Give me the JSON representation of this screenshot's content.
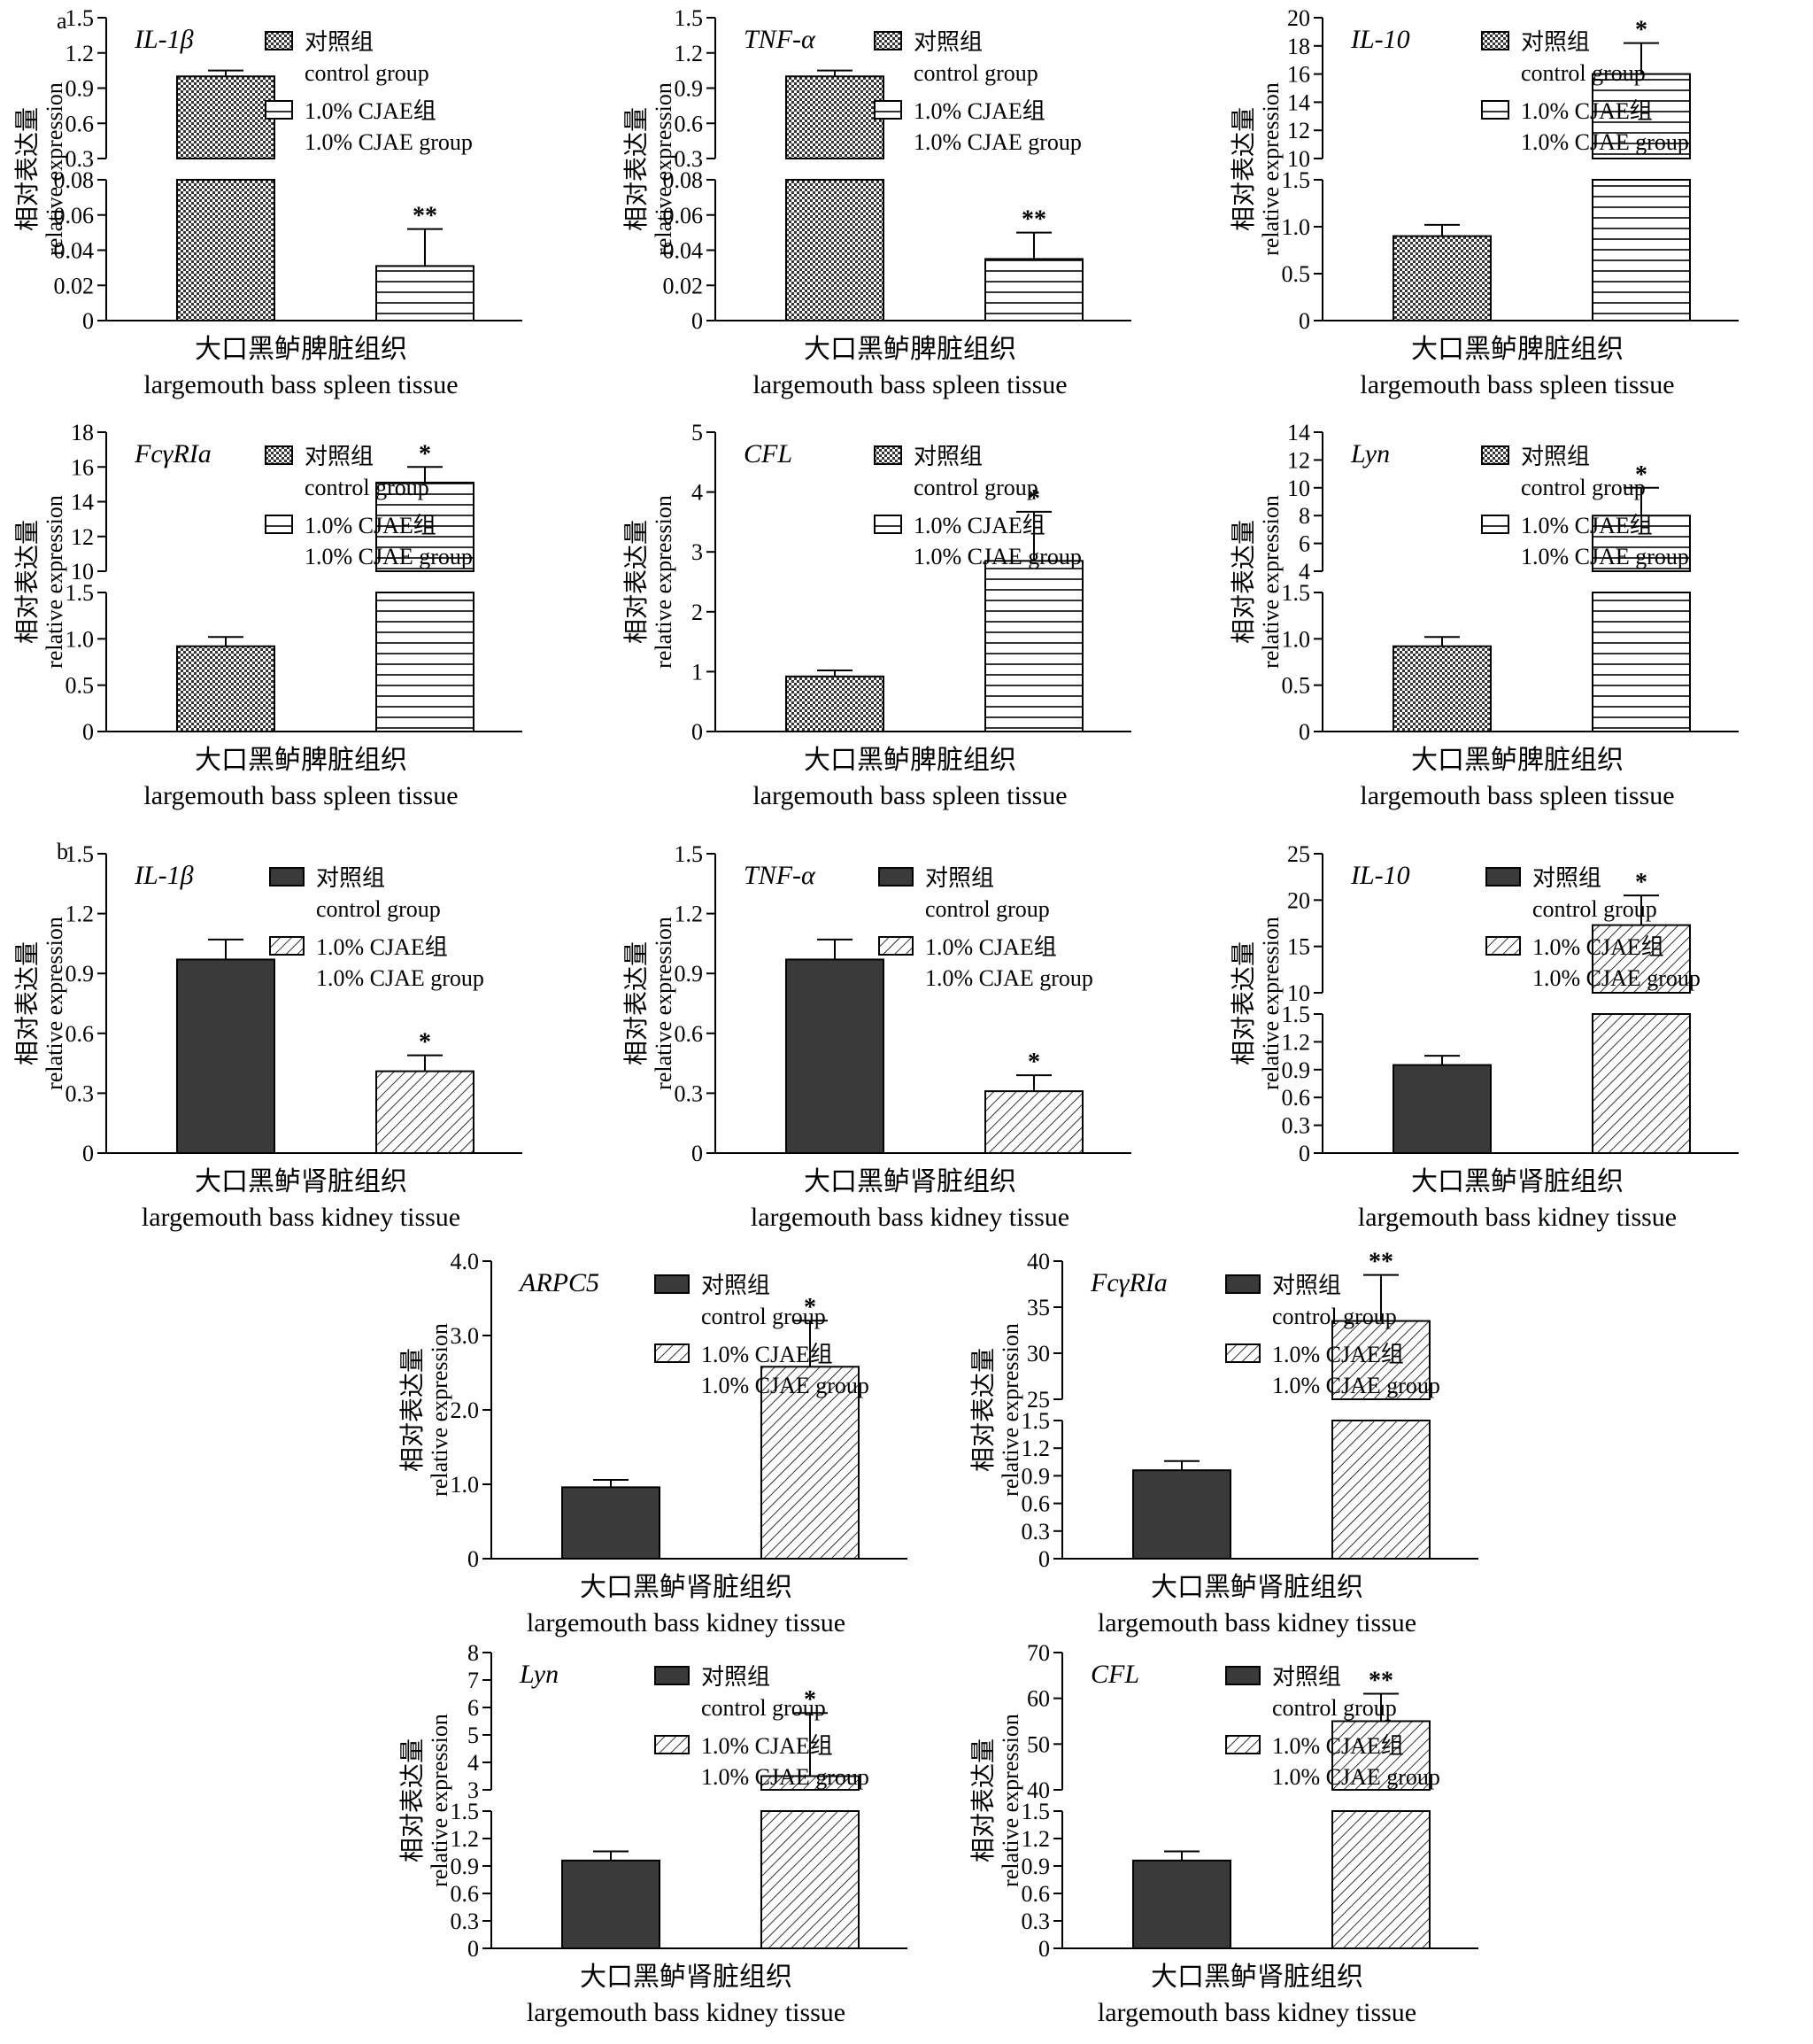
{
  "sections": [
    {
      "id": "a",
      "label": "a"
    },
    {
      "id": "b",
      "label": "b"
    }
  ],
  "patterns": {
    "spleen_control": "checker",
    "spleen_treat": "hlines",
    "kidney_control": "solid",
    "kidney_treat": "diag"
  },
  "colors": {
    "axis": "#000000",
    "kidney_control_fill": "#3a3a3a",
    "checker_dark": "#333333",
    "background": "#ffffff"
  },
  "chart_data": [
    {
      "type": "bar",
      "section": "a",
      "gene": "IL-1β",
      "ylabel_cn": "相对表达量",
      "ylabel_en": "relative expression",
      "xlabel_cn": "大口黑鲈脾脏组织",
      "xlabel_en": "largemouth bass spleen tissue",
      "legend": [
        {
          "cn": "对照组",
          "en": "control group"
        },
        {
          "cn": "1.0% CJAE组",
          "en": "1.0% CJAE group"
        }
      ],
      "series": [
        {
          "name": "对照组 control group",
          "value": 1.0,
          "error": 0.05
        },
        {
          "name": "1.0% CJAE组 1.0% CJAE group",
          "value": 0.031,
          "error": 0.021
        }
      ],
      "significance": [
        "",
        "**"
      ],
      "broken_axis": true,
      "lower_range": [
        0,
        0.08
      ],
      "lower_ticks": [
        "0",
        "0.02",
        "0.04",
        "0.06",
        "0.08"
      ],
      "upper_range": [
        0.3,
        1.5
      ],
      "upper_ticks": [
        "0.3",
        "0.6",
        "0.9",
        "1.2",
        "1.5"
      ],
      "upper_tick_values": [
        0.3,
        0.6,
        0.9,
        1.2,
        1.5
      ],
      "lower_tick_values": [
        0,
        0.02,
        0.04,
        0.06,
        0.08
      ]
    },
    {
      "type": "bar",
      "section": "a",
      "gene": "TNF-α",
      "ylabel_cn": "相对表达量",
      "ylabel_en": "relative expression",
      "xlabel_cn": "大口黑鲈脾脏组织",
      "xlabel_en": "largemouth bass spleen tissue",
      "legend": [
        {
          "cn": "对照组",
          "en": "control group"
        },
        {
          "cn": "1.0% CJAE组",
          "en": "1.0% CJAE group"
        }
      ],
      "series": [
        {
          "name": "对照组 control group",
          "value": 1.0,
          "error": 0.05
        },
        {
          "name": "1.0% CJAE组 1.0% CJAE group",
          "value": 0.035,
          "error": 0.015
        }
      ],
      "significance": [
        "",
        "**"
      ],
      "broken_axis": true,
      "lower_range": [
        0,
        0.08
      ],
      "lower_ticks": [
        "0",
        "0.02",
        "0.04",
        "0.06",
        "0.08"
      ],
      "upper_range": [
        0.3,
        1.5
      ],
      "upper_ticks": [
        "0.3",
        "0.6",
        "0.9",
        "1.2",
        "1.5"
      ],
      "upper_tick_values": [
        0.3,
        0.6,
        0.9,
        1.2,
        1.5
      ],
      "lower_tick_values": [
        0,
        0.02,
        0.04,
        0.06,
        0.08
      ]
    },
    {
      "type": "bar",
      "section": "a",
      "gene": "IL-10",
      "ylabel_cn": "相对表达量",
      "ylabel_en": "relative expression",
      "xlabel_cn": "大口黑鲈脾脏组织",
      "xlabel_en": "largemouth bass spleen tissue",
      "legend": [
        {
          "cn": "对照组",
          "en": "control group"
        },
        {
          "cn": "1.0% CJAE组",
          "en": "1.0% CJAE group"
        }
      ],
      "series": [
        {
          "name": "对照组 control group",
          "value": 0.9,
          "error": 0.12
        },
        {
          "name": "1.0% CJAE组 1.0% CJAE group",
          "value": 16.0,
          "error": 2.2
        }
      ],
      "significance": [
        "",
        "*"
      ],
      "broken_axis": true,
      "lower_range": [
        0,
        1.5
      ],
      "lower_ticks": [
        "0",
        "0.5",
        "1.0",
        "1.5"
      ],
      "upper_range": [
        10,
        20
      ],
      "upper_ticks": [
        "10",
        "12",
        "14",
        "16",
        "18",
        "20"
      ],
      "upper_tick_values": [
        10,
        12,
        14,
        16,
        18,
        20
      ],
      "lower_tick_values": [
        0,
        0.5,
        1.0,
        1.5
      ]
    },
    {
      "type": "bar",
      "section": "a",
      "gene": "FcγRIa",
      "ylabel_cn": "相对表达量",
      "ylabel_en": "relative expression",
      "xlabel_cn": "大口黑鲈脾脏组织",
      "xlabel_en": "largemouth bass spleen tissue",
      "legend": [
        {
          "cn": "对照组",
          "en": "control group"
        },
        {
          "cn": "1.0% CJAE组",
          "en": "1.0% CJAE group"
        }
      ],
      "series": [
        {
          "name": "对照组 control group",
          "value": 0.92,
          "error": 0.1
        },
        {
          "name": "1.0% CJAE组 1.0% CJAE group",
          "value": 15.1,
          "error": 0.9
        }
      ],
      "significance": [
        "",
        "*"
      ],
      "broken_axis": true,
      "lower_range": [
        0,
        1.5
      ],
      "lower_ticks": [
        "0",
        "0.5",
        "1.0",
        "1.5"
      ],
      "upper_range": [
        10,
        18
      ],
      "upper_ticks": [
        "10",
        "12",
        "14",
        "16",
        "18"
      ],
      "upper_tick_values": [
        10,
        12,
        14,
        16,
        18
      ],
      "lower_tick_values": [
        0,
        0.5,
        1.0,
        1.5
      ]
    },
    {
      "type": "bar",
      "section": "a",
      "gene": "CFL",
      "ylabel_cn": "相对表达量",
      "ylabel_en": "relative expression",
      "xlabel_cn": "大口黑鲈脾脏组织",
      "xlabel_en": "largemouth bass spleen tissue",
      "legend": [
        {
          "cn": "对照组",
          "en": "control group"
        },
        {
          "cn": "1.0% CJAE组",
          "en": "1.0% CJAE group"
        }
      ],
      "series": [
        {
          "name": "对照组 control group",
          "value": 0.92,
          "error": 0.1
        },
        {
          "name": "1.0% CJAE组 1.0% CJAE group",
          "value": 2.85,
          "error": 0.82
        }
      ],
      "significance": [
        "",
        "*"
      ],
      "broken_axis": false,
      "range": [
        0,
        5
      ],
      "ticks": [
        "0",
        "1",
        "2",
        "3",
        "4",
        "5"
      ],
      "tick_values": [
        0,
        1,
        2,
        3,
        4,
        5
      ]
    },
    {
      "type": "bar",
      "section": "a",
      "gene": "Lyn",
      "ylabel_cn": "相对表达量",
      "ylabel_en": "relative expression",
      "xlabel_cn": "大口黑鲈脾脏组织",
      "xlabel_en": "largemouth bass spleen tissue",
      "legend": [
        {
          "cn": "对照组",
          "en": "control group"
        },
        {
          "cn": "1.0% CJAE组",
          "en": "1.0% CJAE group"
        }
      ],
      "series": [
        {
          "name": "对照组 control group",
          "value": 0.92,
          "error": 0.1
        },
        {
          "name": "1.0% CJAE组 1.0% CJAE group",
          "value": 8.0,
          "error": 2.0
        }
      ],
      "significance": [
        "",
        "*"
      ],
      "broken_axis": true,
      "lower_range": [
        0,
        1.5
      ],
      "lower_ticks": [
        "0",
        "0.5",
        "1.0",
        "1.5"
      ],
      "upper_range": [
        4,
        14
      ],
      "upper_ticks": [
        "4",
        "6",
        "8",
        "10",
        "12",
        "14"
      ],
      "upper_tick_values": [
        4,
        6,
        8,
        10,
        12,
        14
      ],
      "lower_tick_values": [
        0,
        0.5,
        1.0,
        1.5
      ]
    },
    {
      "type": "bar",
      "section": "b",
      "gene": "IL-1β",
      "ylabel_cn": "相对表达量",
      "ylabel_en": "relative expression",
      "xlabel_cn": "大口黑鲈肾脏组织",
      "xlabel_en": "largemouth bass kidney tissue",
      "legend": [
        {
          "cn": "对照组",
          "en": "control group"
        },
        {
          "cn": "1.0% CJAE组",
          "en": "1.0% CJAE group"
        }
      ],
      "series": [
        {
          "name": "对照组 control group",
          "value": 0.97,
          "error": 0.1
        },
        {
          "name": "1.0% CJAE组 1.0% CJAE group",
          "value": 0.41,
          "error": 0.08
        }
      ],
      "significance": [
        "",
        "*"
      ],
      "broken_axis": false,
      "range": [
        0,
        1.5
      ],
      "ticks": [
        "0",
        "0.3",
        "0.6",
        "0.9",
        "1.2",
        "1.5"
      ],
      "tick_values": [
        0,
        0.3,
        0.6,
        0.9,
        1.2,
        1.5
      ]
    },
    {
      "type": "bar",
      "section": "b",
      "gene": "TNF-α",
      "ylabel_cn": "相对表达量",
      "ylabel_en": "relative expression",
      "xlabel_cn": "大口黑鲈肾脏组织",
      "xlabel_en": "largemouth bass kidney tissue",
      "legend": [
        {
          "cn": "对照组",
          "en": "control group"
        },
        {
          "cn": "1.0% CJAE组",
          "en": "1.0% CJAE group"
        }
      ],
      "series": [
        {
          "name": "对照组 control group",
          "value": 0.97,
          "error": 0.1
        },
        {
          "name": "1.0% CJAE组 1.0% CJAE group",
          "value": 0.31,
          "error": 0.08
        }
      ],
      "significance": [
        "",
        "*"
      ],
      "broken_axis": false,
      "range": [
        0,
        1.5
      ],
      "ticks": [
        "0",
        "0.3",
        "0.6",
        "0.9",
        "1.2",
        "1.5"
      ],
      "tick_values": [
        0,
        0.3,
        0.6,
        0.9,
        1.2,
        1.5
      ]
    },
    {
      "type": "bar",
      "section": "b",
      "gene": "IL-10",
      "ylabel_cn": "相对表达量",
      "ylabel_en": "relative expression",
      "xlabel_cn": "大口黑鲈肾脏组织",
      "xlabel_en": "largemouth bass kidney tissue",
      "legend": [
        {
          "cn": "对照组",
          "en": "control group"
        },
        {
          "cn": "1.0% CJAE组",
          "en": "1.0% CJAE group"
        }
      ],
      "series": [
        {
          "name": "对照组 control group",
          "value": 0.95,
          "error": 0.1
        },
        {
          "name": "1.0% CJAE组 1.0% CJAE group",
          "value": 17.3,
          "error": 3.2
        }
      ],
      "significance": [
        "",
        "*"
      ],
      "broken_axis": true,
      "lower_range": [
        0,
        1.5
      ],
      "lower_ticks": [
        "0",
        "0.3",
        "0.6",
        "0.9",
        "1.2",
        "1.5"
      ],
      "upper_range": [
        10,
        25
      ],
      "upper_ticks": [
        "10",
        "15",
        "20",
        "25"
      ],
      "upper_tick_values": [
        10,
        15,
        20,
        25
      ],
      "lower_tick_values": [
        0,
        0.3,
        0.6,
        0.9,
        1.2,
        1.5
      ]
    },
    {
      "type": "bar",
      "section": "b",
      "gene": "ARPC5",
      "ylabel_cn": "相对表达量",
      "ylabel_en": "relative expression",
      "xlabel_cn": "大口黑鲈肾脏组织",
      "xlabel_en": "largemouth bass kidney tissue",
      "legend": [
        {
          "cn": "对照组",
          "en": "control group"
        },
        {
          "cn": "1.0% CJAE组",
          "en": "1.0% CJAE group"
        }
      ],
      "series": [
        {
          "name": "对照组 control group",
          "value": 0.96,
          "error": 0.1
        },
        {
          "name": "1.0% CJAE组 1.0% CJAE group",
          "value": 2.58,
          "error": 0.62
        }
      ],
      "significance": [
        "",
        "*"
      ],
      "broken_axis": false,
      "range": [
        0,
        4.0
      ],
      "ticks": [
        "0",
        "1.0",
        "2.0",
        "3.0",
        "4.0"
      ],
      "tick_values": [
        0,
        1.0,
        2.0,
        3.0,
        4.0
      ]
    },
    {
      "type": "bar",
      "section": "b",
      "gene": "FcγRIa",
      "ylabel_cn": "相对表达量",
      "ylabel_en": "relative expression",
      "xlabel_cn": "大口黑鲈肾脏组织",
      "xlabel_en": "largemouth bass kidney tissue",
      "legend": [
        {
          "cn": "对照组",
          "en": "control group"
        },
        {
          "cn": "1.0% CJAE组",
          "en": "1.0% CJAE group"
        }
      ],
      "series": [
        {
          "name": "对照组 control group",
          "value": 0.96,
          "error": 0.1
        },
        {
          "name": "1.0% CJAE组 1.0% CJAE group",
          "value": 33.5,
          "error": 5.0
        }
      ],
      "significance": [
        "",
        "**"
      ],
      "broken_axis": true,
      "lower_range": [
        0,
        1.5
      ],
      "lower_ticks": [
        "0",
        "0.3",
        "0.6",
        "0.9",
        "1.2",
        "1.5"
      ],
      "upper_range": [
        25,
        40
      ],
      "upper_ticks": [
        "25",
        "30",
        "35",
        "40"
      ],
      "upper_tick_values": [
        25,
        30,
        35,
        40
      ],
      "lower_tick_values": [
        0,
        0.3,
        0.6,
        0.9,
        1.2,
        1.5
      ]
    },
    {
      "type": "bar",
      "section": "b",
      "gene": "Lyn",
      "ylabel_cn": "相对表达量",
      "ylabel_en": "relative expression",
      "xlabel_cn": "大口黑鲈肾脏组织",
      "xlabel_en": "largemouth bass kidney tissue",
      "legend": [
        {
          "cn": "对照组",
          "en": "control group"
        },
        {
          "cn": "1.0% CJAE组",
          "en": "1.0% CJAE group"
        }
      ],
      "series": [
        {
          "name": "对照组 control group",
          "value": 0.96,
          "error": 0.1
        },
        {
          "name": "1.0% CJAE组 1.0% CJAE group",
          "value": 3.5,
          "error": 2.3
        }
      ],
      "significance": [
        "",
        "*"
      ],
      "broken_axis": true,
      "lower_range": [
        0,
        1.5
      ],
      "lower_ticks": [
        "0",
        "0.3",
        "0.6",
        "0.9",
        "1.2",
        "1.5"
      ],
      "upper_range": [
        3,
        8
      ],
      "upper_ticks": [
        "3",
        "4",
        "5",
        "6",
        "7",
        "8"
      ],
      "upper_tick_values": [
        3,
        4,
        5,
        6,
        7,
        8
      ],
      "lower_tick_values": [
        0,
        0.3,
        0.6,
        0.9,
        1.2,
        1.5
      ]
    },
    {
      "type": "bar",
      "section": "b",
      "gene": "CFL",
      "ylabel_cn": "相对表达量",
      "ylabel_en": "relative expression",
      "xlabel_cn": "大口黑鲈肾脏组织",
      "xlabel_en": "largemouth bass kidney tissue",
      "legend": [
        {
          "cn": "对照组",
          "en": "control group"
        },
        {
          "cn": "1.0% CJAE组",
          "en": "1.0% CJAE group"
        }
      ],
      "series": [
        {
          "name": "对照组 control group",
          "value": 0.96,
          "error": 0.1
        },
        {
          "name": "1.0% CJAE组 1.0% CJAE group",
          "value": 55.0,
          "error": 6.0
        }
      ],
      "significance": [
        "",
        "**"
      ],
      "broken_axis": true,
      "lower_range": [
        0,
        1.5
      ],
      "lower_ticks": [
        "0",
        "0.3",
        "0.6",
        "0.9",
        "1.2",
        "1.5"
      ],
      "upper_range": [
        40,
        70
      ],
      "upper_ticks": [
        "40",
        "50",
        "60",
        "70"
      ],
      "upper_tick_values": [
        40,
        50,
        60,
        70
      ],
      "lower_tick_values": [
        0,
        0.3,
        0.6,
        0.9,
        1.2,
        1.5
      ]
    }
  ]
}
